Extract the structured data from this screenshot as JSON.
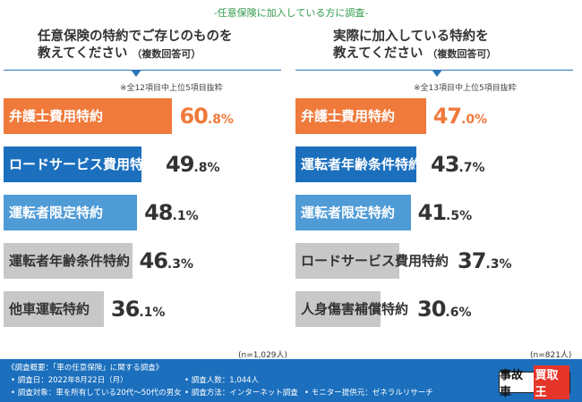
{
  "survey_title": "-任意保険に加入している方に調査-",
  "colors": {
    "orange": "#ef7a3b",
    "darkblue": "#1b6fbd",
    "lightblue": "#4f9bd6",
    "gray": "#c8c8c8",
    "title_green": "#2f9a4a"
  },
  "chart_data": [
    {
      "type": "bar",
      "question_line1": "任意保険の特約でご存じのものを",
      "question_line2": "教えてください",
      "question_sub": "（複数回答可）",
      "note": "※全12項目中上位5項目抜粋",
      "n_label": "(n=1,029人)",
      "categories": [
        "弁護士費用特約",
        "ロードサービス費用特約",
        "運転者限定特約",
        "運転者年齢条件特約",
        "他車運転特約"
      ],
      "values": [
        60.8,
        49.8,
        48.1,
        46.3,
        36.1
      ],
      "value_int": [
        "60",
        "49",
        "48",
        "46",
        "36"
      ],
      "value_dec": [
        ".8%",
        ".8%",
        ".1%",
        ".3%",
        ".1%"
      ],
      "bar_colors": [
        "#ef7a3b",
        "#1b6fbd",
        "#4f9bd6",
        "#c8c8c8",
        "#c8c8c8"
      ],
      "xlim": [
        0,
        100
      ]
    },
    {
      "type": "bar",
      "question_line1": "実際に加入している特約を",
      "question_line2": "教えてください",
      "question_sub": "（複数回答可）",
      "note": "※全13項目中上位5項目抜粋",
      "n_label": "(n=821人)",
      "categories": [
        "弁護士費用特約",
        "運転者年齢条件特約",
        "運転者限定特約",
        "ロードサービス費用特約",
        "人身傷害補償特約"
      ],
      "values": [
        47.0,
        43.7,
        41.5,
        37.3,
        30.6
      ],
      "value_int": [
        "47",
        "43",
        "41",
        "37",
        "30"
      ],
      "value_dec": [
        ".0%",
        ".7%",
        ".5%",
        ".3%",
        ".6%"
      ],
      "bar_colors": [
        "#ef7a3b",
        "#1b6fbd",
        "#4f9bd6",
        "#c8c8c8",
        "#c8c8c8"
      ],
      "xlim": [
        0,
        100
      ]
    }
  ],
  "footer": {
    "overview": "《調査概要：「車の任意保険」に関する調査》",
    "date": "• 調査日：2022年8月22日（月）",
    "count": "• 調査人数：1,044人",
    "target": "• 調査対象：車を所有している20代～50代の男女",
    "method": "• 調査方法：インターネット調査",
    "provider": "• モニター提供元：ゼネラルリサーチ",
    "logo_black": "事故車",
    "logo_red": "買取王"
  }
}
